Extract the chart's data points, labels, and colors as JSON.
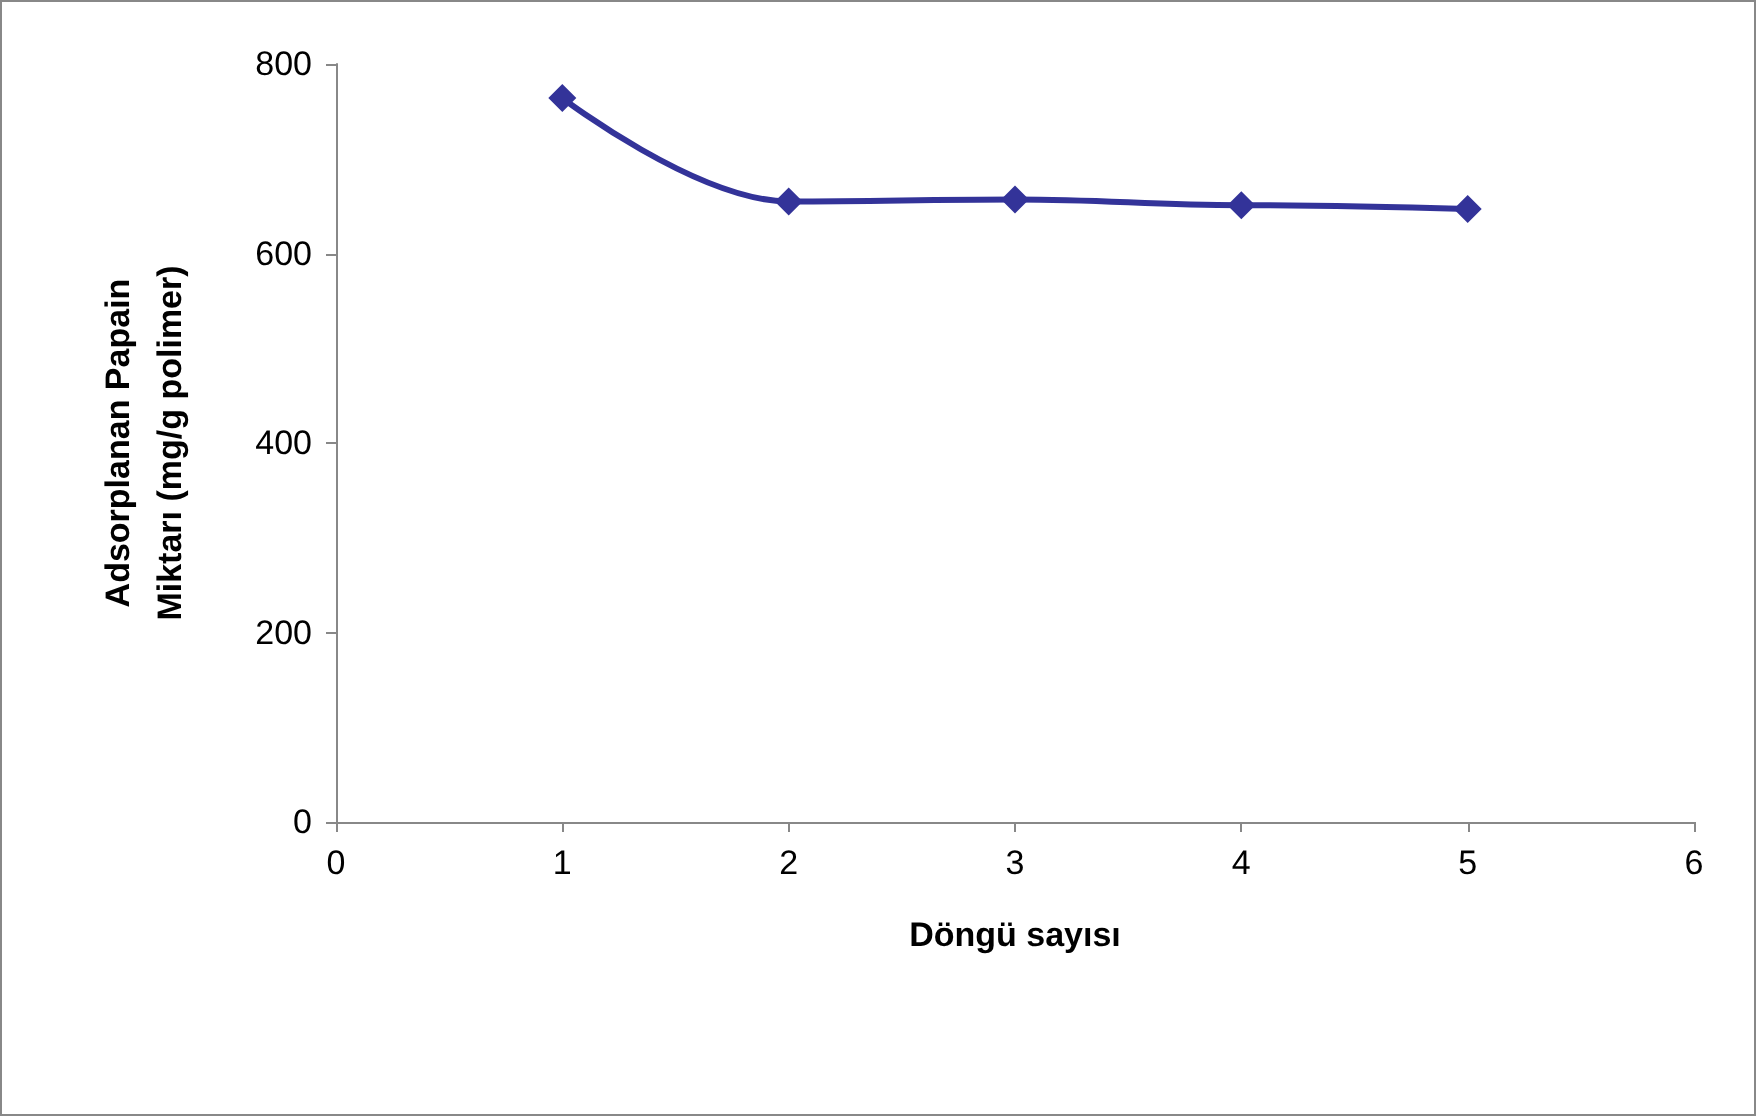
{
  "chart_data": {
    "type": "line",
    "xlabel": "Döngü sayısı",
    "ylabel": "Adsorplanan Papain\nMiktarı (mg/g polimer)",
    "x": [
      1,
      2,
      3,
      4,
      5
    ],
    "series": [
      {
        "color": "#333399",
        "values": [
          764,
          655,
          657,
          651,
          647
        ]
      }
    ],
    "xlim": [
      0,
      6
    ],
    "xticks": [
      0,
      1,
      2,
      3,
      4,
      5,
      6
    ],
    "ylim": [
      0,
      800
    ],
    "yticks": [
      0,
      200,
      400,
      600,
      800
    ],
    "grid": false,
    "marker": "diamond",
    "line_style": "solid"
  }
}
